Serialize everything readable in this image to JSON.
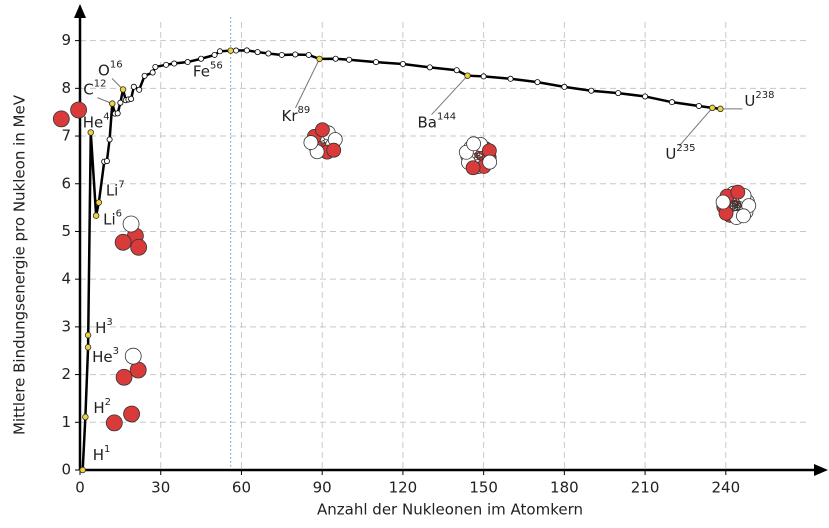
{
  "chart_data": {
    "type": "line",
    "xlabel": "Anzahl der Nukleonen im Atomkern",
    "ylabel": "Mittlere Bindungsenergie pro Nukleon in MeV",
    "xlim": [
      0,
      275
    ],
    "ylim": [
      0,
      9.6
    ],
    "xticks": [
      0,
      30,
      60,
      90,
      120,
      150,
      180,
      210,
      240
    ],
    "yticks": [
      0,
      1,
      2,
      3,
      4,
      5,
      6,
      7,
      8,
      9
    ],
    "grid": true,
    "color": "#000000",
    "highlight_color": "#f2d43a",
    "x": [
      1,
      2,
      3,
      4,
      6,
      7,
      9,
      10,
      11,
      12,
      13,
      14,
      15,
      16,
      17,
      18,
      19,
      20,
      22,
      24,
      27,
      28,
      32,
      35,
      40,
      45,
      50,
      52,
      56,
      58,
      62,
      66,
      70,
      75,
      80,
      85,
      89,
      95,
      100,
      110,
      120,
      130,
      140,
      144,
      150,
      160,
      170,
      180,
      190,
      200,
      210,
      220,
      230,
      235,
      238
    ],
    "values": [
      0,
      1.112,
      2.573,
      7.074,
      5.332,
      5.606,
      6.463,
      6.475,
      6.928,
      7.68,
      7.47,
      7.476,
      7.699,
      7.976,
      7.751,
      7.767,
      7.779,
      8.032,
      7.97,
      8.261,
      8.332,
      8.448,
      8.493,
      8.52,
      8.551,
      8.62,
      8.7,
      8.776,
      8.79,
      8.792,
      8.795,
      8.76,
      8.73,
      8.7,
      8.71,
      8.7,
      8.617,
      8.62,
      8.6,
      8.55,
      8.51,
      8.44,
      8.38,
      8.265,
      8.25,
      8.2,
      8.13,
      8.03,
      7.95,
      7.9,
      7.83,
      7.71,
      7.63,
      7.591,
      7.57
    ],
    "annotations": [
      {
        "label": "H",
        "sup": "1",
        "x": 1,
        "y": 0
      },
      {
        "label": "H",
        "sup": "2",
        "x": 2,
        "y": 1.112
      },
      {
        "label": "H",
        "sup": "3",
        "x": 3,
        "y": 2.827
      },
      {
        "label": "He",
        "sup": "3",
        "x": 3,
        "y": 2.573
      },
      {
        "label": "He",
        "sup": "4",
        "x": 4,
        "y": 7.074
      },
      {
        "label": "Li",
        "sup": "6",
        "x": 6,
        "y": 5.332
      },
      {
        "label": "Li",
        "sup": "7",
        "x": 7,
        "y": 5.606
      },
      {
        "label": "C",
        "sup": "12",
        "x": 12,
        "y": 7.68
      },
      {
        "label": "O",
        "sup": "16",
        "x": 16,
        "y": 7.976
      },
      {
        "label": "Fe",
        "sup": "56",
        "x": 56,
        "y": 8.79
      },
      {
        "label": "Kr",
        "sup": "89",
        "x": 89,
        "y": 8.617
      },
      {
        "label": "Ba",
        "sup": "144",
        "x": 144,
        "y": 8.265
      },
      {
        "label": "U",
        "sup": "235",
        "x": 235,
        "y": 7.591
      },
      {
        "label": "U",
        "sup": "238",
        "x": 238,
        "y": 7.57
      }
    ]
  }
}
